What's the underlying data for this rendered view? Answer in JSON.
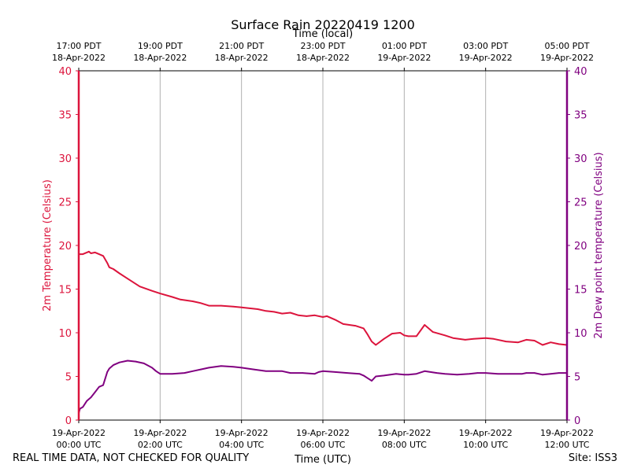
{
  "chart_data": {
    "type": "line",
    "title": "Surface Rain 20220419 1200",
    "top_axis_label": "Time (local)",
    "xlabel": "Time (UTC)",
    "ylabel_left": "2m Temperature (Celsius)",
    "ylabel_right": "2m Dew point temperature (Celsius)",
    "ylim": [
      0,
      40
    ],
    "yticks": [
      0,
      5,
      10,
      15,
      20,
      25,
      30,
      35,
      40
    ],
    "xlim_hours": [
      0,
      12
    ],
    "bottom_ticks": [
      {
        "hour": 0,
        "line1": "19-Apr-2022",
        "line2": "00:00 UTC"
      },
      {
        "hour": 2,
        "line1": "19-Apr-2022",
        "line2": "02:00 UTC"
      },
      {
        "hour": 4,
        "line1": "19-Apr-2022",
        "line2": "04:00 UTC"
      },
      {
        "hour": 6,
        "line1": "19-Apr-2022",
        "line2": "06:00 UTC"
      },
      {
        "hour": 8,
        "line1": "19-Apr-2022",
        "line2": "08:00 UTC"
      },
      {
        "hour": 10,
        "line1": "19-Apr-2022",
        "line2": "10:00 UTC"
      },
      {
        "hour": 12,
        "line1": "19-Apr-2022",
        "line2": "12:00 UTC"
      }
    ],
    "top_ticks": [
      {
        "hour": 0,
        "line1": "17:00 PDT",
        "line2": "18-Apr-2022"
      },
      {
        "hour": 2,
        "line1": "19:00 PDT",
        "line2": "18-Apr-2022"
      },
      {
        "hour": 4,
        "line1": "21:00 PDT",
        "line2": "18-Apr-2022"
      },
      {
        "hour": 6,
        "line1": "23:00 PDT",
        "line2": "18-Apr-2022"
      },
      {
        "hour": 8,
        "line1": "01:00 PDT",
        "line2": "19-Apr-2022"
      },
      {
        "hour": 10,
        "line1": "03:00 PDT",
        "line2": "19-Apr-2022"
      },
      {
        "hour": 12,
        "line1": "05:00 PDT",
        "line2": "19-Apr-2022"
      }
    ],
    "series": [
      {
        "name": "2m Temperature",
        "color": "#dc143c",
        "x": [
          0,
          0.1,
          0.2,
          0.25,
          0.3,
          0.4,
          0.5,
          0.6,
          0.7,
          0.75,
          0.85,
          1.0,
          1.2,
          1.5,
          1.8,
          2.0,
          2.3,
          2.5,
          2.8,
          3.0,
          3.2,
          3.5,
          3.8,
          4.0,
          4.2,
          4.4,
          4.6,
          4.8,
          5.0,
          5.2,
          5.4,
          5.6,
          5.8,
          6.0,
          6.1,
          6.3,
          6.5,
          6.8,
          7.0,
          7.1,
          7.2,
          7.3,
          7.5,
          7.7,
          7.9,
          8.0,
          8.1,
          8.3,
          8.5,
          8.7,
          9.0,
          9.2,
          9.5,
          9.7,
          10.0,
          10.2,
          10.5,
          10.8,
          11.0,
          11.2,
          11.4,
          11.6,
          11.8,
          12.0
        ],
        "values": [
          19.0,
          19.0,
          19.2,
          19.3,
          19.1,
          19.2,
          19.0,
          18.8,
          18.0,
          17.5,
          17.3,
          16.8,
          16.2,
          15.3,
          14.8,
          14.5,
          14.1,
          13.8,
          13.6,
          13.4,
          13.1,
          13.1,
          13.0,
          12.9,
          12.8,
          12.7,
          12.5,
          12.4,
          12.2,
          12.3,
          12.0,
          11.9,
          12.0,
          11.8,
          11.9,
          11.5,
          11.0,
          10.8,
          10.5,
          9.8,
          9.0,
          8.6,
          9.3,
          9.9,
          10.0,
          9.7,
          9.6,
          9.6,
          10.9,
          10.1,
          9.7,
          9.4,
          9.2,
          9.3,
          9.4,
          9.3,
          9.0,
          8.9,
          9.2,
          9.1,
          8.6,
          8.9,
          8.7,
          8.6
        ]
      },
      {
        "name": "2m Dew point temperature",
        "color": "#800080",
        "x": [
          0,
          0.03,
          0.1,
          0.2,
          0.3,
          0.4,
          0.5,
          0.6,
          0.7,
          0.75,
          0.85,
          1.0,
          1.2,
          1.4,
          1.6,
          1.8,
          1.9,
          2.0,
          2.3,
          2.6,
          2.8,
          3.0,
          3.2,
          3.5,
          3.8,
          4.0,
          4.3,
          4.6,
          5.0,
          5.2,
          5.5,
          5.8,
          5.9,
          6.0,
          6.3,
          6.6,
          6.9,
          7.0,
          7.1,
          7.2,
          7.3,
          7.5,
          7.8,
          8.0,
          8.1,
          8.3,
          8.5,
          8.8,
          9.0,
          9.3,
          9.6,
          9.8,
          10.0,
          10.3,
          10.6,
          10.9,
          11.0,
          11.2,
          11.4,
          11.6,
          11.8,
          12.0
        ],
        "values": [
          0.8,
          1.3,
          1.5,
          2.2,
          2.6,
          3.2,
          3.8,
          4.0,
          5.5,
          5.9,
          6.3,
          6.6,
          6.8,
          6.7,
          6.5,
          6.0,
          5.6,
          5.3,
          5.3,
          5.4,
          5.6,
          5.8,
          6.0,
          6.2,
          6.1,
          6.0,
          5.8,
          5.6,
          5.6,
          5.4,
          5.4,
          5.3,
          5.5,
          5.6,
          5.5,
          5.4,
          5.3,
          5.1,
          4.8,
          4.5,
          5.0,
          5.1,
          5.3,
          5.2,
          5.2,
          5.3,
          5.6,
          5.4,
          5.3,
          5.2,
          5.3,
          5.4,
          5.4,
          5.3,
          5.3,
          5.3,
          5.4,
          5.4,
          5.2,
          5.3,
          5.4,
          5.4
        ]
      }
    ]
  },
  "footer": {
    "left": "REAL TIME DATA, NOT CHECKED FOR QUALITY",
    "right": "Site: ISS3"
  }
}
